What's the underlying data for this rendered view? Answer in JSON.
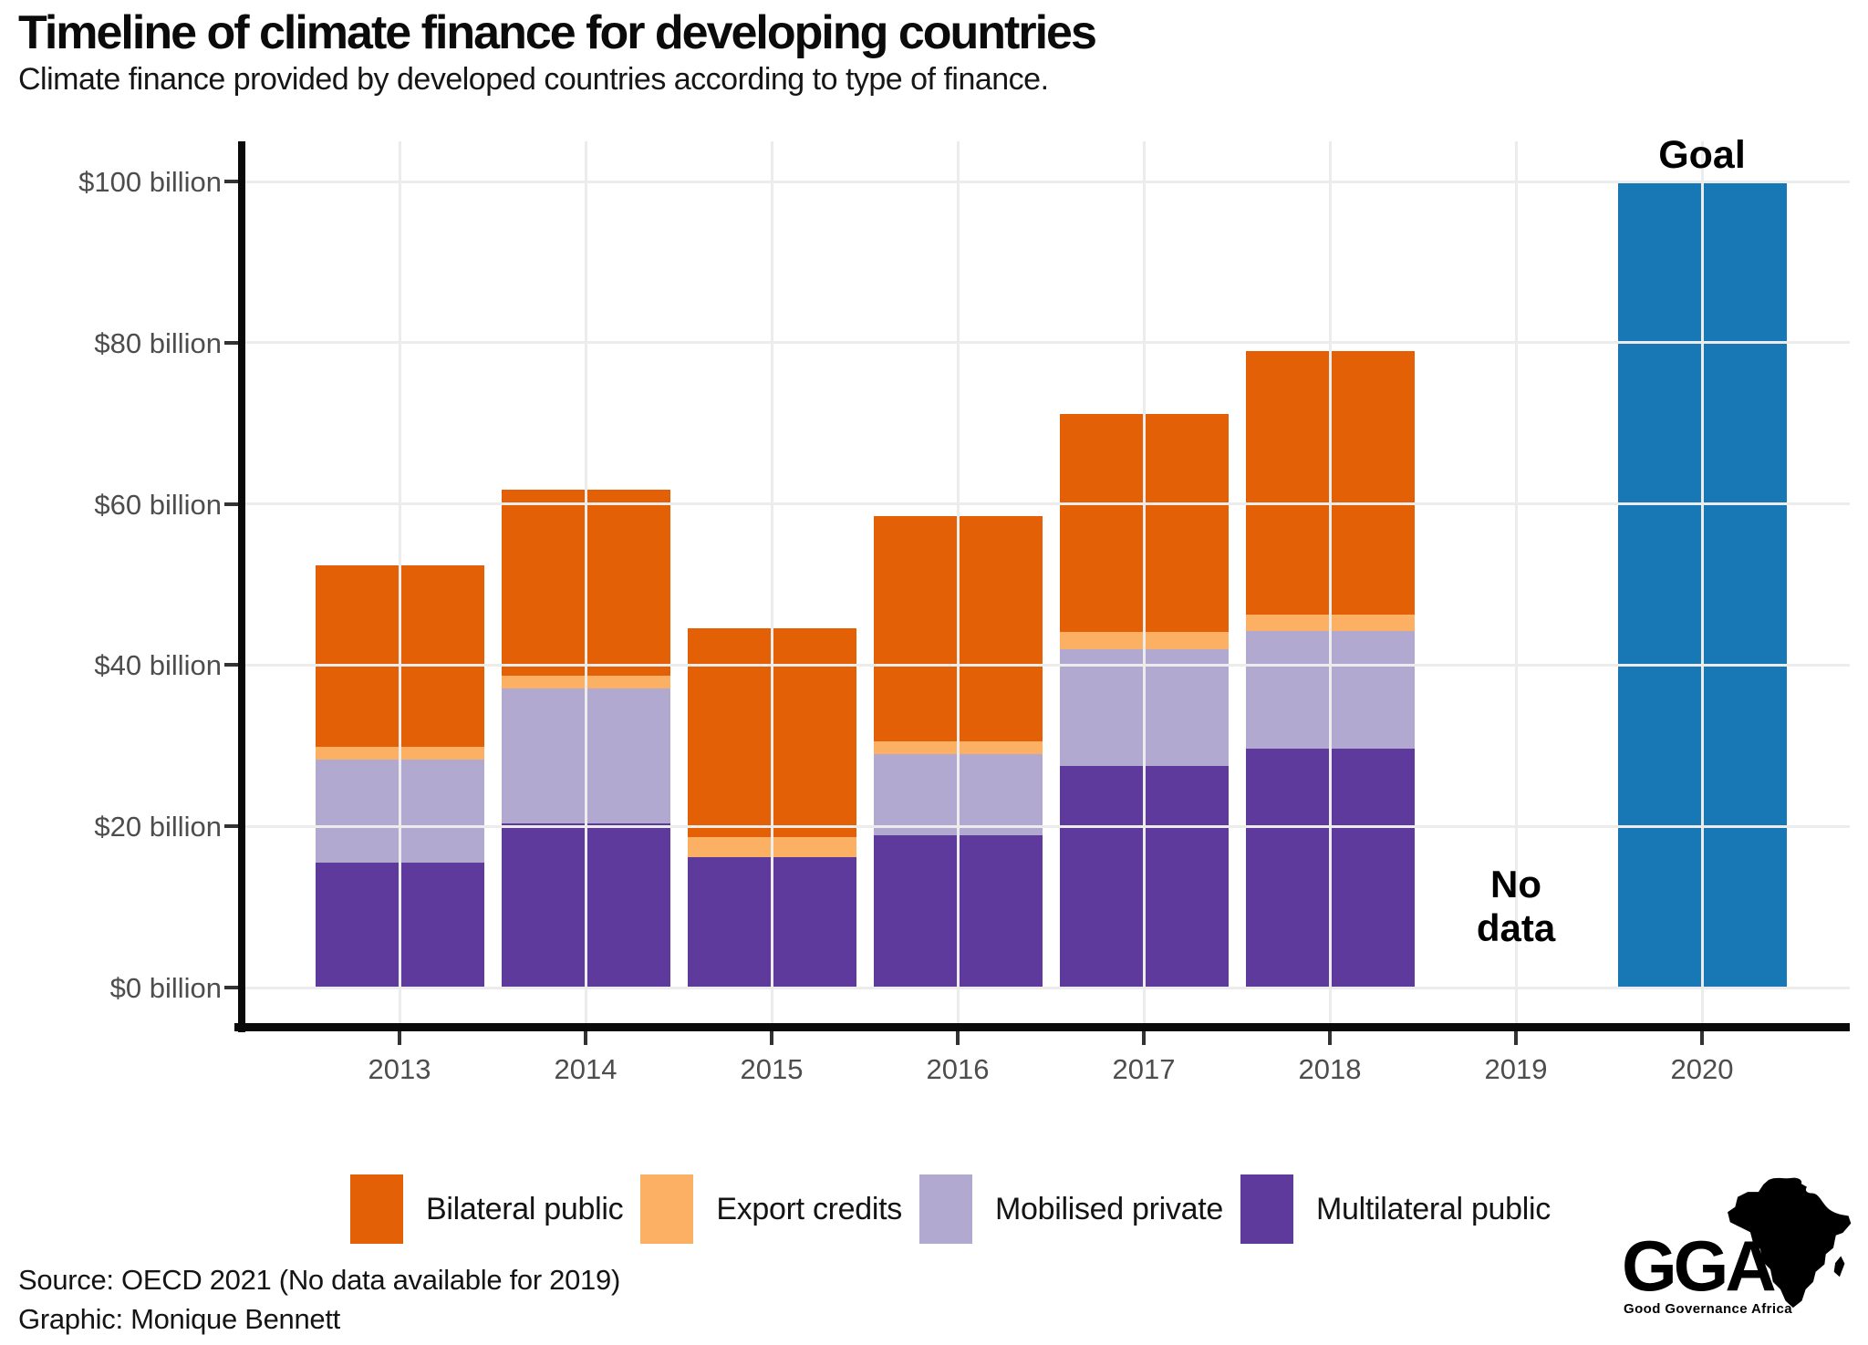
{
  "header": {
    "title": "Timeline of climate finance for developing countries",
    "subtitle": "Climate finance provided by developed countries according to type of finance."
  },
  "chart_data": {
    "type": "bar",
    "stacked": true,
    "unit": "USD billion",
    "categories": [
      "2013",
      "2014",
      "2015",
      "2016",
      "2017",
      "2018",
      "2019",
      "2020"
    ],
    "series": [
      {
        "name": "Multilateral public",
        "color": "#5d3a9b",
        "values": [
          15.5,
          20.4,
          16.2,
          18.9,
          27.5,
          29.6,
          null,
          null
        ]
      },
      {
        "name": "Mobilised private",
        "color": "#b2a9d1",
        "values": [
          12.8,
          16.7,
          0,
          10.1,
          14.5,
          14.6,
          null,
          null
        ]
      },
      {
        "name": "Export credits",
        "color": "#fbb063",
        "values": [
          1.6,
          1.6,
          2.5,
          1.5,
          2.1,
          2.1,
          null,
          null
        ]
      },
      {
        "name": "Bilateral public",
        "color": "#e36006",
        "values": [
          22.5,
          23.1,
          25.9,
          28.0,
          27.1,
          32.7,
          null,
          null
        ]
      }
    ],
    "totals": [
      52.4,
      61.8,
      44.6,
      58.5,
      71.2,
      79.0,
      null,
      100
    ],
    "legend_order": [
      "Bilateral public",
      "Export credits",
      "Mobilised private",
      "Multilateral public"
    ],
    "legend_position": "bottom",
    "goal": {
      "category": "2020",
      "value": 100,
      "label": "Goal",
      "color": "#1878b6"
    },
    "no_data": {
      "category": "2019",
      "label": "No\ndata"
    },
    "y_ticks": [
      {
        "value": 0,
        "label": "$0 billion"
      },
      {
        "value": 20,
        "label": "$20 billion"
      },
      {
        "value": 40,
        "label": "$40 billion"
      },
      {
        "value": 60,
        "label": "$60 billion"
      },
      {
        "value": 80,
        "label": "$80 billion"
      },
      {
        "value": 100,
        "label": "$100 billion"
      }
    ],
    "ylim": [
      0,
      100
    ],
    "grid": true,
    "xlabel": "",
    "ylabel": ""
  },
  "footer": {
    "source_line1": "Source: OECD 2021 (No data available for 2019)",
    "source_line2": "Graphic: Monique Bennett"
  },
  "logo": {
    "acronym": "GGA",
    "name": "Good Governance Africa"
  }
}
